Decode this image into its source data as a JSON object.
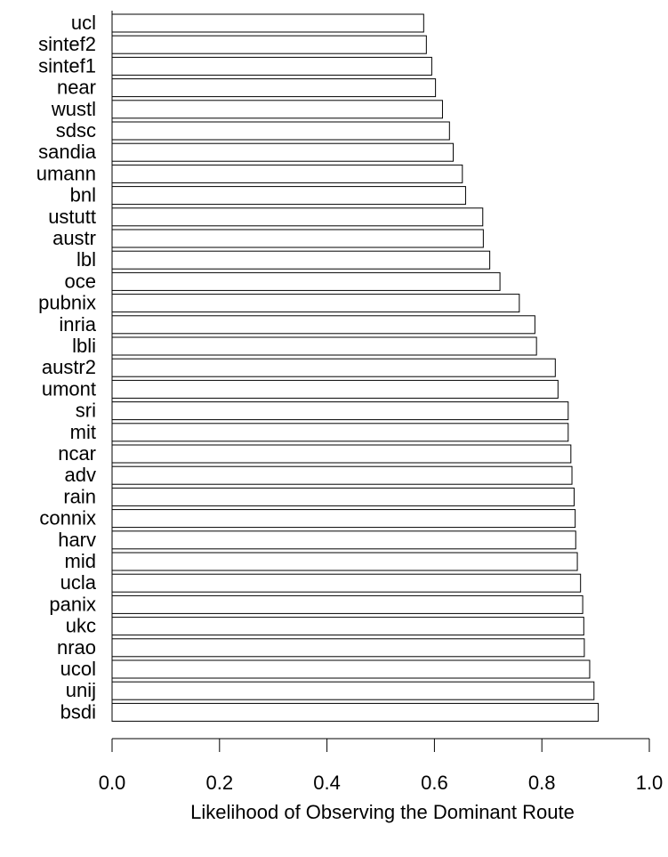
{
  "chart_data": {
    "type": "bar",
    "orientation": "horizontal",
    "categories": [
      "ucl",
      "sintef2",
      "sintef1",
      "near",
      "wustl",
      "sdsc",
      "sandia",
      "umann",
      "bnl",
      "ustutt",
      "austr",
      "lbl",
      "oce",
      "pubnix",
      "inria",
      "lbli",
      "austr2",
      "umont",
      "sri",
      "mit",
      "ncar",
      "adv",
      "rain",
      "connix",
      "harv",
      "mid",
      "ucla",
      "panix",
      "ukc",
      "nrao",
      "ucol",
      "unij",
      "bsdi"
    ],
    "values": [
      0.58,
      0.585,
      0.595,
      0.602,
      0.615,
      0.628,
      0.635,
      0.652,
      0.658,
      0.69,
      0.691,
      0.703,
      0.722,
      0.758,
      0.787,
      0.79,
      0.825,
      0.83,
      0.849,
      0.849,
      0.854,
      0.856,
      0.86,
      0.862,
      0.863,
      0.866,
      0.872,
      0.876,
      0.878,
      0.879,
      0.889,
      0.897,
      0.905
    ],
    "xlim": [
      0,
      1
    ],
    "xticks": [
      "0.0",
      "0.2",
      "0.4",
      "0.6",
      "0.8",
      "1.0"
    ],
    "xlabel": "Likelihood of Observing the Dominant Route",
    "ylabel": "",
    "title": "",
    "grid": false
  }
}
